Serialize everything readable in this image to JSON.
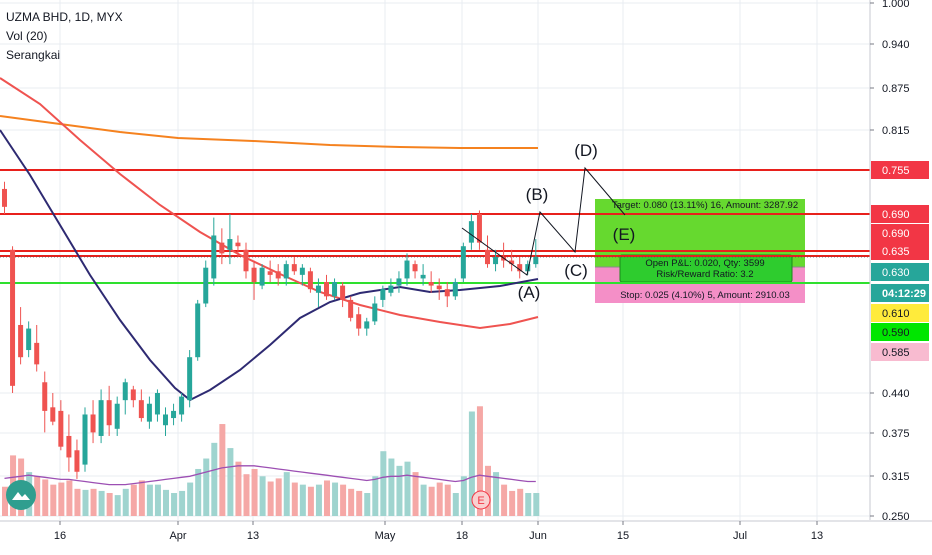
{
  "legend": {
    "symbol": "UZMA BHD, 1D, MYX",
    "volume": "Vol (20)",
    "indicator": "Serangkai"
  },
  "chart_data": {
    "type": "candlestick",
    "y_ticks": [
      "1.000",
      "0.940",
      "0.875",
      "0.815",
      "0.440",
      "0.375",
      "0.315",
      "0.250"
    ],
    "x_ticks": [
      "16",
      "Apr",
      "13",
      "May",
      "18",
      "Jun",
      "15",
      "Jul",
      "13"
    ],
    "price_labels": [
      {
        "value": "0.755",
        "bg": "#f23645",
        "color": "#ffffff"
      },
      {
        "value": "0.690",
        "bg": "#f23645",
        "color": "#ffffff"
      },
      {
        "value": "0.690",
        "bg": "#f23645",
        "color": "#ffffff"
      },
      {
        "value": "0.635",
        "bg": "#f23645",
        "color": "#ffffff"
      },
      {
        "value": "0.630",
        "bg": "#26a69a",
        "color": "#ffffff"
      },
      {
        "value": "04:12:29",
        "bg": "#26a69a",
        "color": "#ffffff"
      },
      {
        "value": "0.610",
        "bg": "#ffeb3b",
        "color": "#131722"
      },
      {
        "value": "0.590",
        "bg": "#00e600",
        "color": "#131722"
      },
      {
        "value": "0.585",
        "bg": "#f8bbd0",
        "color": "#131722"
      }
    ],
    "candles": [
      {
        "o": 0.725,
        "h": 0.735,
        "l": 0.69,
        "c": 0.7
      },
      {
        "o": 0.64,
        "h": 0.645,
        "l": 0.44,
        "c": 0.45
      },
      {
        "o": 0.535,
        "h": 0.56,
        "l": 0.48,
        "c": 0.49
      },
      {
        "o": 0.5,
        "h": 0.54,
        "l": 0.49,
        "c": 0.53
      },
      {
        "o": 0.51,
        "h": 0.535,
        "l": 0.47,
        "c": 0.48
      },
      {
        "o": 0.455,
        "h": 0.47,
        "l": 0.385,
        "c": 0.415
      },
      {
        "o": 0.42,
        "h": 0.44,
        "l": 0.395,
        "c": 0.4
      },
      {
        "o": 0.415,
        "h": 0.43,
        "l": 0.36,
        "c": 0.365
      },
      {
        "o": 0.38,
        "h": 0.41,
        "l": 0.33,
        "c": 0.35
      },
      {
        "o": 0.36,
        "h": 0.375,
        "l": 0.32,
        "c": 0.33
      },
      {
        "o": 0.34,
        "h": 0.42,
        "l": 0.33,
        "c": 0.41
      },
      {
        "o": 0.41,
        "h": 0.43,
        "l": 0.37,
        "c": 0.385
      },
      {
        "o": 0.38,
        "h": 0.445,
        "l": 0.37,
        "c": 0.43
      },
      {
        "o": 0.43,
        "h": 0.45,
        "l": 0.38,
        "c": 0.395
      },
      {
        "o": 0.39,
        "h": 0.435,
        "l": 0.38,
        "c": 0.425
      },
      {
        "o": 0.43,
        "h": 0.46,
        "l": 0.41,
        "c": 0.455
      },
      {
        "o": 0.445,
        "h": 0.45,
        "l": 0.42,
        "c": 0.43
      },
      {
        "o": 0.43,
        "h": 0.445,
        "l": 0.4,
        "c": 0.405
      },
      {
        "o": 0.4,
        "h": 0.435,
        "l": 0.39,
        "c": 0.425
      },
      {
        "o": 0.41,
        "h": 0.445,
        "l": 0.4,
        "c": 0.44
      },
      {
        "o": 0.395,
        "h": 0.42,
        "l": 0.38,
        "c": 0.41
      },
      {
        "o": 0.405,
        "h": 0.425,
        "l": 0.395,
        "c": 0.415
      },
      {
        "o": 0.41,
        "h": 0.44,
        "l": 0.4,
        "c": 0.435
      },
      {
        "o": 0.43,
        "h": 0.5,
        "l": 0.42,
        "c": 0.49
      },
      {
        "o": 0.49,
        "h": 0.57,
        "l": 0.485,
        "c": 0.565
      },
      {
        "o": 0.565,
        "h": 0.625,
        "l": 0.56,
        "c": 0.615
      },
      {
        "o": 0.6,
        "h": 0.685,
        "l": 0.59,
        "c": 0.66
      },
      {
        "o": 0.65,
        "h": 0.67,
        "l": 0.62,
        "c": 0.635
      },
      {
        "o": 0.64,
        "h": 0.69,
        "l": 0.62,
        "c": 0.655
      },
      {
        "o": 0.65,
        "h": 0.66,
        "l": 0.63,
        "c": 0.645
      },
      {
        "o": 0.64,
        "h": 0.65,
        "l": 0.6,
        "c": 0.61
      },
      {
        "o": 0.615,
        "h": 0.625,
        "l": 0.57,
        "c": 0.595
      },
      {
        "o": 0.59,
        "h": 0.62,
        "l": 0.585,
        "c": 0.615
      },
      {
        "o": 0.61,
        "h": 0.625,
        "l": 0.595,
        "c": 0.605
      },
      {
        "o": 0.61,
        "h": 0.62,
        "l": 0.59,
        "c": 0.6
      },
      {
        "o": 0.6,
        "h": 0.625,
        "l": 0.59,
        "c": 0.62
      },
      {
        "o": 0.62,
        "h": 0.63,
        "l": 0.605,
        "c": 0.61
      },
      {
        "o": 0.605,
        "h": 0.62,
        "l": 0.59,
        "c": 0.615
      },
      {
        "o": 0.61,
        "h": 0.615,
        "l": 0.58,
        "c": 0.585
      },
      {
        "o": 0.58,
        "h": 0.6,
        "l": 0.56,
        "c": 0.59
      },
      {
        "o": 0.595,
        "h": 0.605,
        "l": 0.57,
        "c": 0.575
      },
      {
        "o": 0.575,
        "h": 0.6,
        "l": 0.57,
        "c": 0.595
      },
      {
        "o": 0.59,
        "h": 0.595,
        "l": 0.56,
        "c": 0.57
      },
      {
        "o": 0.57,
        "h": 0.575,
        "l": 0.54,
        "c": 0.545
      },
      {
        "o": 0.55,
        "h": 0.56,
        "l": 0.52,
        "c": 0.53
      },
      {
        "o": 0.53,
        "h": 0.545,
        "l": 0.52,
        "c": 0.54
      },
      {
        "o": 0.54,
        "h": 0.575,
        "l": 0.535,
        "c": 0.565
      },
      {
        "o": 0.57,
        "h": 0.59,
        "l": 0.56,
        "c": 0.585
      },
      {
        "o": 0.58,
        "h": 0.6,
        "l": 0.575,
        "c": 0.59
      },
      {
        "o": 0.59,
        "h": 0.61,
        "l": 0.58,
        "c": 0.6
      },
      {
        "o": 0.6,
        "h": 0.635,
        "l": 0.59,
        "c": 0.625
      },
      {
        "o": 0.62,
        "h": 0.625,
        "l": 0.6,
        "c": 0.61
      },
      {
        "o": 0.6,
        "h": 0.62,
        "l": 0.59,
        "c": 0.605
      },
      {
        "o": 0.595,
        "h": 0.61,
        "l": 0.58,
        "c": 0.59
      },
      {
        "o": 0.59,
        "h": 0.6,
        "l": 0.57,
        "c": 0.585
      },
      {
        "o": 0.585,
        "h": 0.595,
        "l": 0.56,
        "c": 0.575
      },
      {
        "o": 0.575,
        "h": 0.6,
        "l": 0.57,
        "c": 0.595
      },
      {
        "o": 0.6,
        "h": 0.65,
        "l": 0.595,
        "c": 0.645
      },
      {
        "o": 0.65,
        "h": 0.69,
        "l": 0.64,
        "c": 0.68
      },
      {
        "o": 0.69,
        "h": 0.695,
        "l": 0.64,
        "c": 0.65
      },
      {
        "o": 0.64,
        "h": 0.66,
        "l": 0.615,
        "c": 0.62
      },
      {
        "o": 0.62,
        "h": 0.64,
        "l": 0.61,
        "c": 0.63
      },
      {
        "o": 0.63,
        "h": 0.65,
        "l": 0.615,
        "c": 0.625
      },
      {
        "o": 0.625,
        "h": 0.64,
        "l": 0.61,
        "c": 0.62
      },
      {
        "o": 0.62,
        "h": 0.63,
        "l": 0.6,
        "c": 0.61
      },
      {
        "o": 0.61,
        "h": 0.625,
        "l": 0.605,
        "c": 0.62
      },
      {
        "o": 0.62,
        "h": 0.655,
        "l": 0.615,
        "c": 0.63
      }
    ],
    "volumes": [
      0.28,
      0.58,
      0.55,
      0.42,
      0.38,
      0.35,
      0.3,
      0.32,
      0.34,
      0.26,
      0.25,
      0.26,
      0.24,
      0.22,
      0.2,
      0.26,
      0.3,
      0.34,
      0.3,
      0.3,
      0.25,
      0.22,
      0.24,
      0.32,
      0.45,
      0.55,
      0.7,
      0.88,
      0.65,
      0.52,
      0.4,
      0.45,
      0.38,
      0.33,
      0.36,
      0.42,
      0.32,
      0.3,
      0.28,
      0.3,
      0.34,
      0.32,
      0.3,
      0.26,
      0.24,
      0.22,
      0.38,
      0.62,
      0.55,
      0.48,
      0.52,
      0.42,
      0.3,
      0.28,
      0.32,
      0.3,
      0.22,
      0.38,
      1.0,
      1.05,
      0.48,
      0.42,
      0.3,
      0.24,
      0.26,
      0.22,
      0.22
    ],
    "volume_ma": [
      0.36,
      0.37,
      0.38,
      0.39,
      0.38,
      0.37,
      0.36,
      0.35,
      0.35,
      0.34,
      0.33,
      0.32,
      0.31,
      0.3,
      0.3,
      0.3,
      0.31,
      0.32,
      0.33,
      0.34,
      0.35,
      0.36,
      0.37,
      0.38,
      0.4,
      0.42,
      0.44,
      0.46,
      0.47,
      0.48,
      0.48,
      0.48,
      0.47,
      0.46,
      0.45,
      0.44,
      0.43,
      0.42,
      0.41,
      0.4,
      0.39,
      0.38,
      0.37,
      0.36,
      0.35,
      0.34,
      0.35,
      0.37,
      0.38,
      0.38,
      0.39,
      0.38,
      0.37,
      0.36,
      0.35,
      0.34,
      0.33,
      0.34,
      0.37,
      0.39,
      0.38,
      0.37,
      0.36,
      0.35,
      0.34,
      0.33,
      0.33
    ],
    "horizontal_levels": [
      {
        "price": 0.755,
        "color": "#e8201c"
      },
      {
        "price": 0.69,
        "color": "#e8201c"
      },
      {
        "price": 0.635,
        "color": "#e8201c"
      },
      {
        "price": 0.63,
        "color": "#e8201c"
      },
      {
        "price": 0.605,
        "color": "#2ee02e"
      }
    ],
    "wave_labels": [
      "(A)",
      "(B)",
      "(C)",
      "(D)",
      "(E)"
    ],
    "position_tool": {
      "target_text": "Target: 0.080 (13.11%) 16, Amount: 3287.92",
      "pnl_text": "Open P&L: 0.020, Qty: 3599",
      "rr_text": "Risk/Reward Ratio: 3.2",
      "stop_text": "Stop: 0.025 (4.10%) 5, Amount: 2910.03",
      "entry": 0.61,
      "target": 0.69,
      "stop": 0.585
    },
    "colors": {
      "up": "#26a69a",
      "down": "#ef5350",
      "volume_up": "#9fd4cf",
      "volume_down": "#f5a8a6",
      "target_zone": "#66d92f",
      "stop_zone": "#f48fc7",
      "ma_dark": "#2e2a72",
      "ma_red": "#ef5350",
      "ma_orange": "#f5821f",
      "volume_ma": "#9c4fb3",
      "grid": "#e9ecf2"
    },
    "event_marker": "E"
  }
}
